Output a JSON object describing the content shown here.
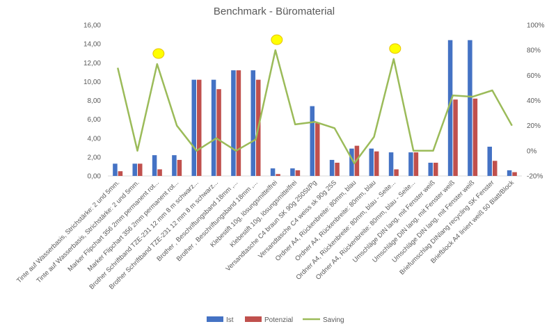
{
  "chart_data": {
    "type": "bar",
    "title": "Benchmark - Büromaterial",
    "xlabel": "",
    "ylabel": "",
    "ylim": [
      0,
      16
    ],
    "y_ticks": [
      "0,00",
      "2,00",
      "4,00",
      "6,00",
      "8,00",
      "10,00",
      "12,00",
      "14,00",
      "16,00"
    ],
    "y2lim": [
      -0.2,
      1.0
    ],
    "y2_ticks": [
      "-20%",
      "0%",
      "20%",
      "40%",
      "60%",
      "80%",
      "100%"
    ],
    "grid": false,
    "legend_position": "bottom",
    "categories": [
      "Tinte auf Wasserbasis, Strichstärke: 2 und 5mm.",
      "Tinte auf Wasserbasis, Strichstärke: 2 und 5mm.",
      "Marker Flipchart 356 2mm permanent  rot...",
      "Marker Flipchart 356 2mm permanent  rot...",
      "Brother Schriftband TZE-231 12 mm 8 m schwarz...",
      "Brother Schriftband TZE-231 12 mm 8 m schwarz...",
      "Brother , Beschriftungsband 18mm ,...",
      "Brother , Beschriftungsband 18mm ,...",
      "Klebestift 10g, lösungsmittelfrei",
      "Klebestift 10g, lösungsmittelfrei",
      "Versandtasche C4 braun SK 90g 250St/Pg",
      "Versandtasche C4 weiss sk 90g 25S",
      "Ordner A4, Rückenbreite: 80mm, blau",
      "Ordner A4, Rückenbreite: 80mm, blau",
      "Ordner A4, Rückenbreite: 80mm, blau - Seite...",
      "Ordner A4, Rückenbreite: 80mm, blau - Seite...",
      "Umschläge DIN lang, mit Fenster weiß",
      "Umschläge DIN lang, mit Fenster weiß",
      "Umschläge DIN lang, mit Fenster weiß",
      "Briefumschlag DINlang recycling SK Fenster",
      "Briefblock A4 liniert  weiß 50 Blatt/Block"
    ],
    "series": [
      {
        "name": "Ist",
        "kind": "bar",
        "axis": "left",
        "color": "#4472C4",
        "values": [
          1.3,
          1.3,
          2.2,
          2.2,
          10.2,
          10.2,
          11.2,
          11.2,
          0.8,
          0.8,
          7.4,
          1.7,
          2.9,
          2.9,
          2.5,
          2.5,
          1.4,
          14.4,
          14.4,
          3.1,
          0.6
        ]
      },
      {
        "name": "Potenzial",
        "kind": "bar",
        "axis": "left",
        "color": "#C0504D",
        "values": [
          0.5,
          1.3,
          0.7,
          1.7,
          10.2,
          9.2,
          11.2,
          10.2,
          0.2,
          0.6,
          5.6,
          1.4,
          3.2,
          2.6,
          0.7,
          2.5,
          1.4,
          8.1,
          8.2,
          1.6,
          0.4
        ]
      },
      {
        "name": "Saving",
        "kind": "line",
        "axis": "right",
        "color": "#9BBB59",
        "values": [
          0.66,
          0.0,
          0.69,
          0.2,
          0.0,
          0.1,
          0.0,
          0.09,
          0.8,
          0.21,
          0.23,
          0.18,
          -0.1,
          0.11,
          0.73,
          0.0,
          0.0,
          0.44,
          0.43,
          0.48,
          0.2
        ]
      }
    ],
    "highlights": {
      "shape": "circle",
      "color": "#FFFF00",
      "series": "Saving",
      "indices": [
        2,
        8,
        14
      ]
    }
  }
}
